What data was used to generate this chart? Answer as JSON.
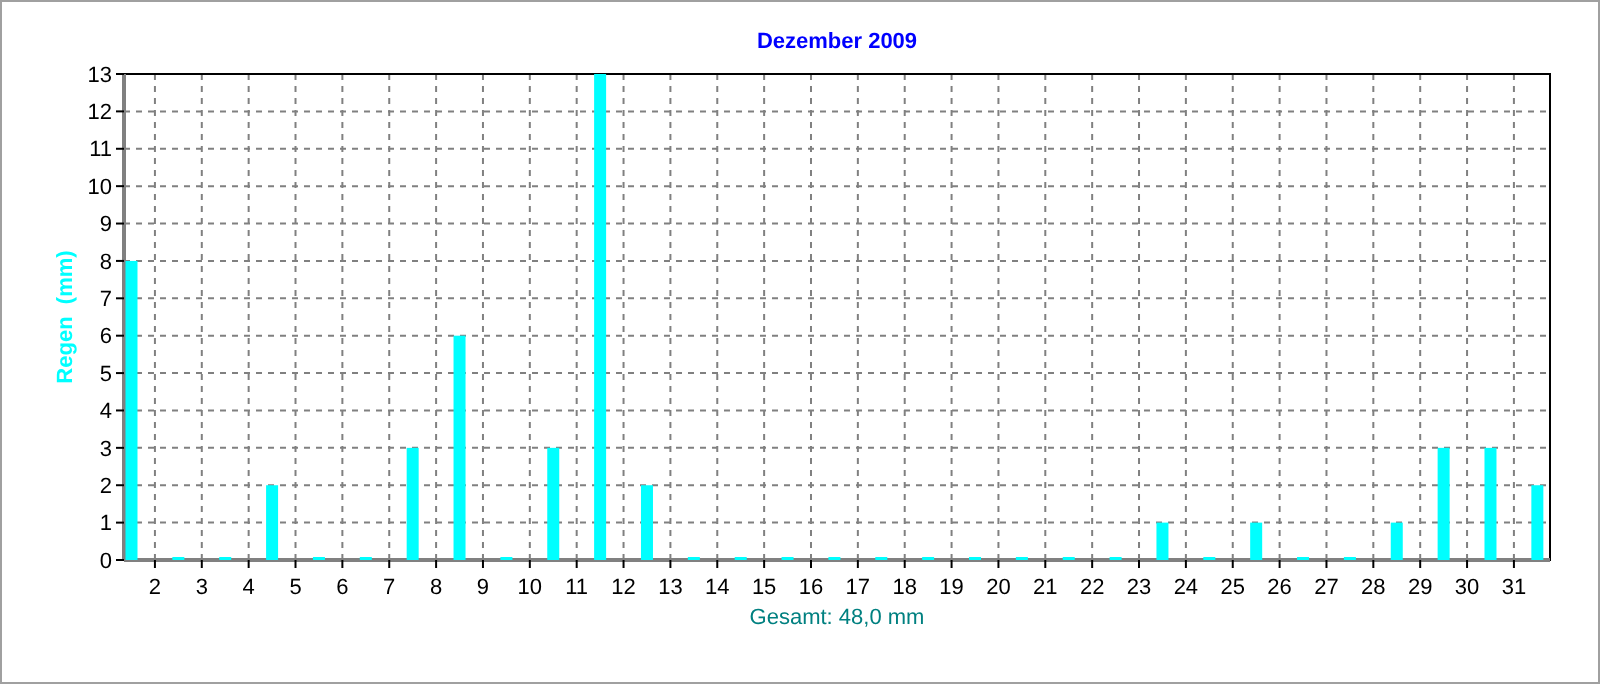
{
  "chart_data": {
    "type": "bar",
    "title": "Dezember 2009",
    "ylabel": "Regen  (mm)",
    "xlabel": "Gesamt: 48,0 mm",
    "x": [
      1.5,
      2.5,
      3.5,
      4.5,
      5.5,
      6.5,
      7.5,
      8.5,
      9.5,
      10.5,
      11.5,
      12.5,
      13.5,
      14.5,
      15.5,
      16.5,
      17.5,
      18.5,
      19.5,
      20.5,
      21.5,
      22.5,
      23.5,
      24.5,
      25.5,
      26.5,
      27.5,
      28.5,
      29.5,
      30.5,
      31.5
    ],
    "values": [
      8,
      0,
      0,
      2,
      0,
      0,
      3,
      6,
      0,
      3,
      13,
      2,
      0,
      0,
      0,
      0,
      0,
      0,
      0,
      0,
      0,
      0,
      1,
      0,
      1,
      0,
      0,
      1,
      3,
      3,
      2
    ],
    "color": "#00ffff",
    "xlim": [
      1.34,
      31.77
    ],
    "xticks": [
      2,
      3,
      4,
      5,
      6,
      7,
      8,
      9,
      10,
      11,
      12,
      13,
      14,
      15,
      16,
      17,
      18,
      19,
      20,
      21,
      22,
      23,
      24,
      25,
      26,
      27,
      28,
      29,
      30,
      31
    ],
    "ylim": [
      0,
      13
    ],
    "yticks": [
      0,
      1,
      2,
      3,
      4,
      5,
      6,
      7,
      8,
      9,
      10,
      11,
      12,
      13
    ],
    "grid": true
  }
}
